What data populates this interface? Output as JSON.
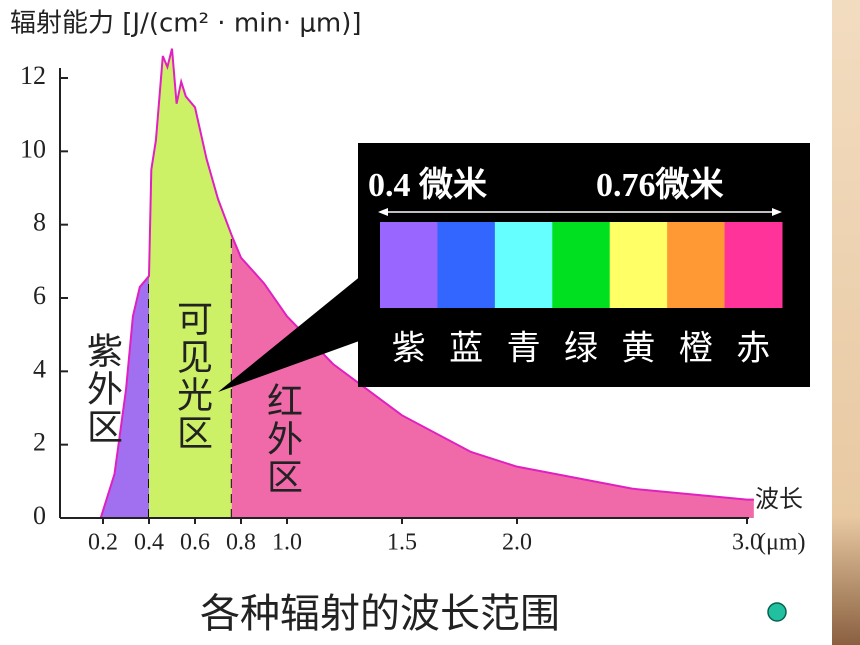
{
  "chart_data": {
    "type": "area",
    "y_label": "辐射能力 [J/(cm² · min· μm)]",
    "x_label": "波长",
    "x_unit": "(μm)",
    "caption": "各种辐射的波长范围",
    "x": [
      0.19,
      0.25,
      0.3,
      0.33,
      0.36,
      0.4,
      0.41,
      0.43,
      0.46,
      0.48,
      0.5,
      0.52,
      0.54,
      0.56,
      0.6,
      0.65,
      0.7,
      0.76,
      0.8,
      0.9,
      1.0,
      1.2,
      1.5,
      1.8,
      2.0,
      2.5,
      3.0,
      3.03
    ],
    "y": [
      0,
      1.2,
      3.5,
      5.5,
      6.3,
      6.6,
      9.5,
      10.3,
      12.6,
      12.3,
      12.8,
      11.3,
      11.9,
      11.5,
      11.2,
      9.8,
      8.7,
      7.7,
      7.1,
      6.4,
      5.5,
      4.2,
      2.8,
      1.8,
      1.4,
      0.8,
      0.5,
      0.5
    ],
    "line_color": "#e020c0",
    "xlim": [
      0,
      3.0
    ],
    "ylim": [
      0,
      12
    ],
    "xticks": [
      0.2,
      0.4,
      0.6,
      0.8,
      {
        "value": 1.0,
        "label": "1.0"
      },
      1.5,
      {
        "value": 2.0,
        "label": "2.0"
      },
      {
        "value": 3.0,
        "label": "3.0"
      }
    ],
    "yticks": [
      0,
      2,
      4,
      6,
      8,
      10,
      12
    ],
    "regions": [
      {
        "name": "紫外区",
        "from": 0.19,
        "to": 0.4,
        "color": "#a070f0"
      },
      {
        "name": "可见光区",
        "from": 0.4,
        "to": 0.76,
        "color": "#ccf066"
      },
      {
        "name": "红外区",
        "from": 0.76,
        "to": 3.03,
        "color": "#f06aaa"
      }
    ],
    "spectrum": {
      "start_label": "0.4 微米",
      "end_label": "0.76微米",
      "bands": [
        {
          "name": "紫",
          "color": "#9966ff"
        },
        {
          "name": "蓝",
          "color": "#3366ff"
        },
        {
          "name": "青",
          "color": "#66ffff"
        },
        {
          "name": "绿",
          "color": "#00e020"
        },
        {
          "name": "黄",
          "color": "#ffff66"
        },
        {
          "name": "橙",
          "color": "#ff9933"
        },
        {
          "name": "赤",
          "color": "#ff3399"
        }
      ]
    }
  }
}
